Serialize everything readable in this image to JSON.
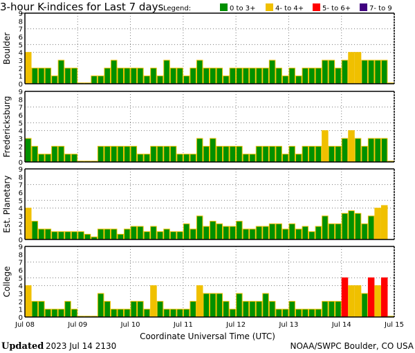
{
  "chart_data": {
    "type": "bar",
    "title": "3-hour K-indices for Last 7 days",
    "legend_label": "Legend:",
    "legend": [
      {
        "label": "0 to 3+",
        "color": "#009000"
      },
      {
        "label": "4- to 4+",
        "color": "#f0c000"
      },
      {
        "label": "5- to 6+",
        "color": "#ff0000"
      },
      {
        "label": "7- to 9",
        "color": "#400080"
      }
    ],
    "xlabel": "Coordinate Universal Time (UTC)",
    "x_ticks": [
      "Jul 08",
      "Jul 09",
      "Jul 10",
      "Jul 11",
      "Jul 12",
      "Jul 13",
      "Jul 14",
      "Jul 15"
    ],
    "y_ticks": [
      "0",
      "1",
      "2",
      "3",
      "4",
      "5",
      "6",
      "7",
      "8",
      "9"
    ],
    "ylim": [
      0,
      9
    ],
    "bars_per_day": 8,
    "panels": [
      {
        "name": "Boulder",
        "values": [
          4,
          2,
          2,
          2,
          1,
          3,
          2,
          2,
          0,
          0,
          1,
          1,
          2,
          3,
          2,
          2,
          2,
          2,
          1,
          2,
          1,
          3,
          2,
          2,
          1,
          2,
          3,
          2,
          2,
          2,
          1,
          2,
          2,
          2,
          2,
          2,
          2,
          3,
          2,
          1,
          2,
          1,
          2,
          2,
          2,
          3,
          3,
          2,
          3,
          4,
          4,
          3,
          3,
          3,
          3,
          0
        ]
      },
      {
        "name": "Fredericksburg",
        "values": [
          3,
          2,
          1,
          1,
          2,
          2,
          1,
          1,
          0,
          0,
          0,
          2,
          2,
          2,
          2,
          2,
          2,
          1,
          1,
          2,
          2,
          2,
          2,
          1,
          1,
          1,
          3,
          2,
          3,
          2,
          2,
          2,
          2,
          1,
          1,
          2,
          2,
          2,
          2,
          1,
          2,
          1,
          2,
          2,
          2,
          4,
          2,
          2,
          3,
          4,
          3,
          2,
          3,
          3,
          3,
          0
        ]
      },
      {
        "name": "Est. Planetary",
        "values": [
          4,
          2.33,
          1.33,
          1.33,
          1,
          1,
          1,
          1,
          1,
          0.67,
          0.33,
          1.33,
          1.33,
          1.33,
          0.67,
          1.33,
          1.67,
          1.67,
          1,
          1.67,
          1,
          1.33,
          1,
          1,
          2,
          1.33,
          3,
          1.67,
          2.33,
          2,
          1.67,
          1.67,
          2.33,
          1.33,
          1.33,
          1.67,
          1.67,
          2,
          2,
          1.33,
          2,
          1.33,
          1.67,
          1,
          1.67,
          3,
          2,
          2,
          3.33,
          3.67,
          3.33,
          2,
          3,
          4,
          4.33,
          null
        ]
      },
      {
        "name": "College",
        "values": [
          4,
          2,
          2,
          1,
          1,
          1,
          2,
          1,
          0,
          0,
          0,
          3,
          2,
          1,
          1,
          1,
          2,
          2,
          1,
          4,
          2,
          1,
          1,
          1,
          1,
          2,
          4,
          3,
          3,
          3,
          2,
          1,
          3,
          2,
          2,
          2,
          3,
          2,
          1,
          1,
          2,
          1,
          1,
          1,
          1,
          2,
          2,
          2,
          5,
          4,
          4,
          3,
          5,
          4,
          5,
          0
        ]
      }
    ]
  },
  "footer": {
    "updated_label": "Updated",
    "updated_value": "2023 Jul 14 2130",
    "credit": "NOAA/SWPC Boulder, CO USA"
  }
}
